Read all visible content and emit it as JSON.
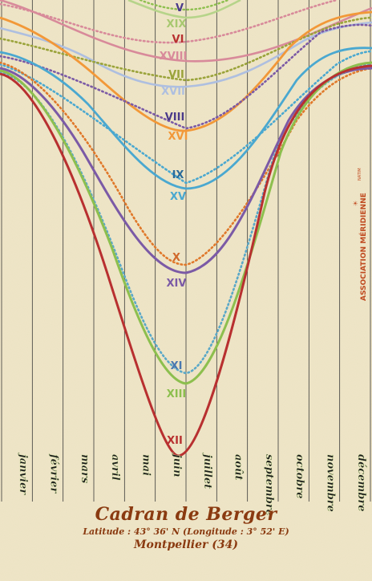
{
  "footer": {
    "title": "Cadran de Berger",
    "latitude_line": "Latitude : 43° 36' N  (Longitude : 3° 52' E)",
    "city": "Montpellier (34)"
  },
  "months": [
    "janvier",
    "février",
    "mars",
    "avril",
    "mai",
    "juin",
    "juillet",
    "août",
    "septembre",
    "octobre",
    "novembre",
    "décembre"
  ],
  "logo": {
    "text": "ASSOCIATION MÉRIDIENNE",
    "small": "NATIM"
  },
  "hour_labels": {
    "morning": [
      "V",
      "VI",
      "VII",
      "VIII",
      "IX",
      "X",
      "XI",
      "XII"
    ],
    "afternoon": [
      "XIX",
      "XVIII",
      "XVII",
      "XVI",
      "XV",
      "XIV",
      "XIII"
    ]
  },
  "colors": {
    "paper": "#efe6c8",
    "text_brown": "#8a3a10",
    "green": "#8dbf4e",
    "purple": "#7b5aa6",
    "orange": "#f29838",
    "blue": "#4aa8d0",
    "lavender": "#aebfe0",
    "pink": "#d88a9a",
    "darkred": "#b83030",
    "olive": "#9aa33a"
  }
}
